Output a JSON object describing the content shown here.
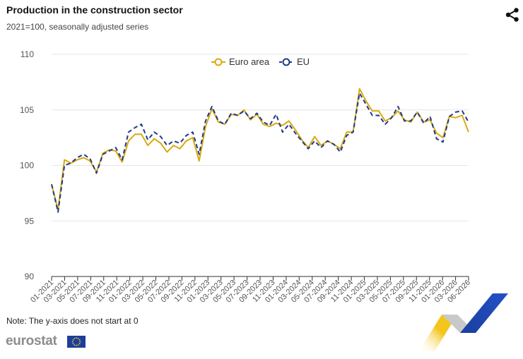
{
  "header": {
    "title": "Production in the construction sector",
    "subtitle": "2021=100, seasonally adjusted series"
  },
  "icons": {
    "share": "share-icon",
    "flag": "eu-flag-icon"
  },
  "footer": {
    "note": "Note: The y-axis does not start at 0",
    "logo": "eurostat"
  },
  "colors": {
    "euro_area": "#d9a90f",
    "eu": "#1f3a8a",
    "grid": "#e6e6e6"
  },
  "chart_data": {
    "type": "line",
    "title": "Production in the construction sector",
    "subtitle": "2021=100, seasonally adjusted series",
    "ylim": [
      90,
      110
    ],
    "yticks": [
      90,
      95,
      100,
      105,
      110
    ],
    "grid": true,
    "legend_placement": "top-center",
    "x_labels": [
      "01-2021",
      "03-2021",
      "05-2021",
      "07-2021",
      "09-2021",
      "11-2021",
      "01-2022",
      "03-2022",
      "05-2022",
      "07-2022",
      "09-2022",
      "11-2022",
      "01-2023",
      "03-2023",
      "05-2023",
      "07-2023",
      "09-2023",
      "11-2023",
      "01-2024",
      "03-2024",
      "05-2024",
      "07-2024",
      "09-2024",
      "11-2024",
      "01-2025",
      "03-2025",
      "05-2025",
      "07-2025",
      "09-2025",
      "11-2025",
      "01-2026",
      "03-2026",
      "06-2026"
    ],
    "series": [
      {
        "name": "Euro area",
        "values": [
          98.3,
          96.0,
          100.5,
          100.2,
          100.5,
          100.7,
          100.4,
          99.4,
          101.1,
          101.4,
          101.3,
          100.3,
          102.2,
          102.8,
          102.8,
          101.8,
          102.4,
          102.0,
          101.2,
          101.8,
          101.5,
          102.2,
          102.5,
          100.4,
          103.5,
          105.1,
          103.9,
          103.7,
          104.6,
          104.5,
          105.0,
          104.1,
          104.6,
          103.7,
          103.5,
          103.8,
          103.6,
          104.0,
          103.2,
          102.3,
          101.6,
          102.6,
          101.8,
          102.2,
          101.9,
          101.5,
          103.0,
          103.0,
          106.9,
          105.8,
          104.9,
          104.9,
          104.0,
          104.3,
          104.9,
          104.1,
          103.9,
          104.8,
          103.9,
          104.1,
          102.9,
          102.5,
          104.4,
          104.3,
          104.5,
          103.0
        ]
      },
      {
        "name": "EU",
        "values": [
          98.3,
          95.8,
          100.0,
          100.2,
          100.7,
          101.0,
          100.6,
          99.3,
          101.0,
          101.3,
          101.6,
          100.5,
          103.0,
          103.4,
          103.7,
          102.3,
          103.0,
          102.6,
          101.8,
          102.2,
          102.0,
          102.7,
          103.0,
          101.0,
          104.0,
          105.3,
          104.0,
          103.7,
          104.7,
          104.5,
          104.9,
          104.2,
          104.7,
          103.9,
          103.6,
          104.6,
          103.0,
          103.7,
          102.9,
          102.2,
          101.5,
          102.2,
          101.6,
          102.2,
          101.9,
          101.2,
          102.7,
          103.0,
          106.5,
          105.5,
          104.5,
          104.5,
          103.7,
          104.3,
          105.3,
          104.0,
          104.0,
          104.8,
          103.8,
          104.4,
          102.4,
          102.1,
          104.4,
          104.8,
          104.9,
          103.9
        ]
      }
    ]
  }
}
